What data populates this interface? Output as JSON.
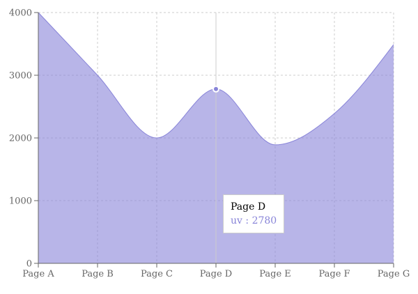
{
  "chart_data": {
    "type": "area",
    "categories": [
      "Page A",
      "Page B",
      "Page C",
      "Page D",
      "Page E",
      "Page F",
      "Page G"
    ],
    "series": [
      {
        "name": "uv",
        "values": [
          4000,
          3000,
          2000,
          2780,
          1890,
          2390,
          3490
        ],
        "color": "#8884d8",
        "fill": "#8884d8"
      }
    ],
    "yticks": [
      0,
      1000,
      2000,
      3000,
      4000
    ],
    "ylim": [
      0,
      4000
    ],
    "grid": true,
    "active_index": 3
  },
  "tooltip": {
    "label": "Page D",
    "series_name": "uv",
    "separator": " : ",
    "value": "2780",
    "color": "#8884d8"
  }
}
